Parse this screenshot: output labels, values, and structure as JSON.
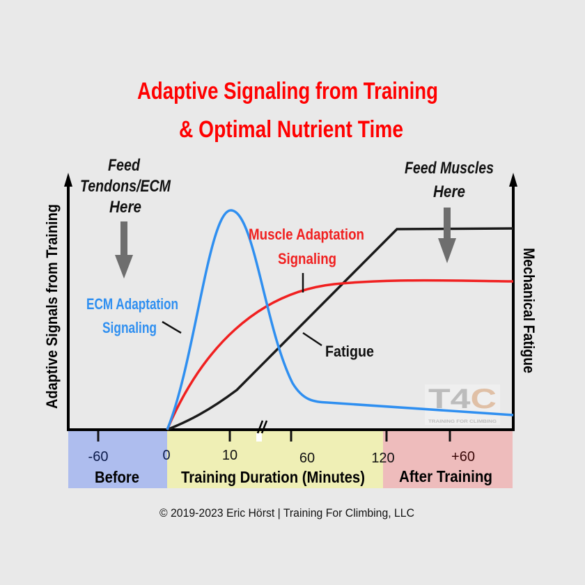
{
  "title_line1": "Adaptive Signaling from Training",
  "title_line2": "& Optimal Nutrient Time",
  "left_axis_label": "Adaptive Signals from Training",
  "right_axis_label": "Mechanical Fatigue",
  "annot_feed_tendons": [
    "Feed",
    "Tendons/ECM",
    "Here"
  ],
  "annot_feed_muscles": [
    "Feed Muscles",
    "Here"
  ],
  "label_ecm": [
    "ECM Adaptation",
    "Signaling"
  ],
  "label_muscle": [
    "Muscle Adaptation",
    "Signaling"
  ],
  "label_fatigue": "Fatigue",
  "ticks": [
    "-60",
    "0",
    "10",
    "60",
    "120",
    "+60"
  ],
  "phases": {
    "before": "Before",
    "training": "Training Duration (Minutes)",
    "after": "After Training"
  },
  "copyright": "© 2019-2023 Eric Hörst | Training For Climbing, LLC",
  "logo": {
    "mark": "T4C",
    "text": "TRAINING FOR CLIMBING"
  },
  "colors": {
    "title": "#ff0000",
    "ecm": "#2f8ff0",
    "muscle": "#f02020",
    "fatigue": "#1a1a1a",
    "before": "#aebdee",
    "training": "#efefb5",
    "after": "#eebcbc",
    "arrow": "#6e6e6e"
  }
}
